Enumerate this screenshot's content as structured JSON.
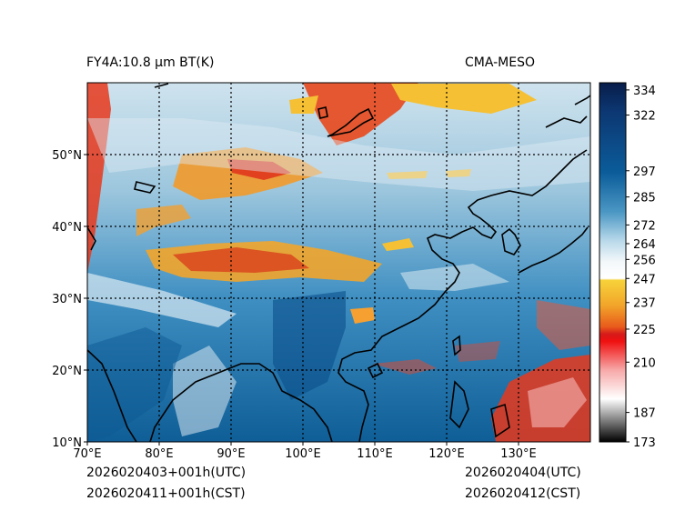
{
  "title_left": "FY4A:10.8 µm BT(K)",
  "title_right": "CMA-MESO",
  "map": {
    "lon_range": [
      70,
      140
    ],
    "lat_range": [
      10,
      60
    ],
    "lon_grid": [
      80,
      90,
      100,
      110,
      120,
      130
    ],
    "lat_grid": [
      20,
      30,
      40,
      50
    ],
    "lon_labels": [
      "70°E",
      "80°E",
      "90°E",
      "100°E",
      "110°E",
      "120°E",
      "130°E"
    ],
    "lat_labels": [
      "50°N",
      "40°N",
      "30°N",
      "20°N",
      "10°N"
    ]
  },
  "colorbar": {
    "ticks": [
      "334",
      "322",
      "297",
      "285",
      "272",
      "264",
      "256",
      "247",
      "237",
      "225",
      "210",
      "187",
      "173"
    ],
    "tick_values": [
      334,
      322,
      297,
      285,
      272,
      264,
      256,
      247,
      237,
      225,
      210,
      187,
      173
    ],
    "range": [
      173,
      336
    ]
  },
  "footer": {
    "init_utc": "2026020403+001h(UTC)",
    "init_cst": "2026020411+001h(CST)",
    "valid_utc": "2026020404(UTC)",
    "valid_cst": "2026020412(CST)"
  },
  "colors": {
    "cold_cloud": "#f5c033",
    "very_cold": "#e8381c",
    "deep_blue": "#0b5c9a",
    "mid_blue": "#2e88bd",
    "light_blue": "#a9cfe2",
    "pale": "#e6f0f5"
  }
}
